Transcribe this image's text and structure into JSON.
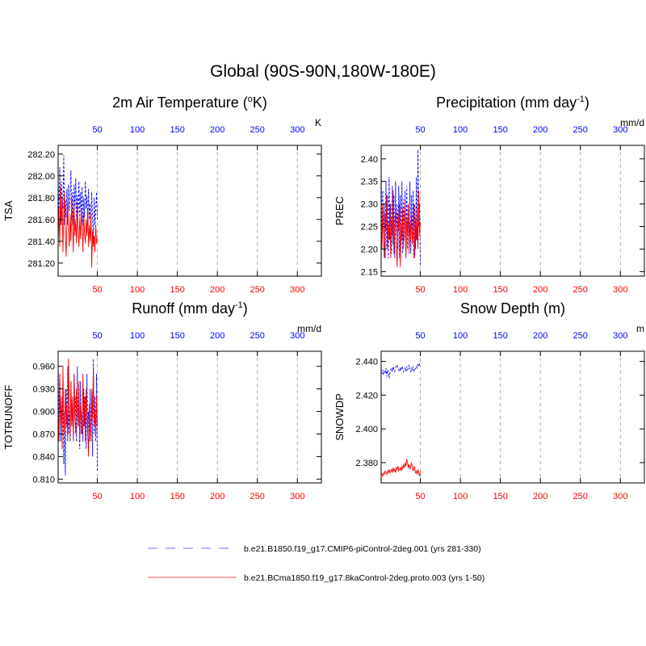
{
  "page_title": "Global (90S-90N,180W-180E)",
  "colors": {
    "series_a": "#0000ff",
    "series_b": "#ff0000",
    "frame": "#000000",
    "grid": "#999999"
  },
  "legend": [
    {
      "label": "b.e21.B1850.f19_g17.CMIP6-piControl-2deg.001 (yrs 281-330)",
      "color": "#8c8cff",
      "dash": "dashed"
    },
    {
      "label": "b.e21.BCma1850.f19_g17.8kaControl-2deg.proto.003 (yrs 1-50)",
      "color": "#ff7070",
      "dash": "solid"
    }
  ],
  "chart_data": [
    {
      "type": "line",
      "title": "2m Air Temperature (",
      "title_sup": "o",
      "title_tail": "K)",
      "ylabel": "TSA",
      "units": "K",
      "xlim": [
        1,
        330
      ],
      "ylim": [
        281.08,
        282.28
      ],
      "yticks": [
        281.2,
        281.4,
        281.6,
        281.8,
        282.0,
        282.2
      ],
      "ytick_labels": [
        "281.20",
        "281.40",
        "281.60",
        "281.80",
        "282.00",
        "282.20"
      ],
      "xticks": [
        50,
        100,
        150,
        200,
        250,
        300
      ],
      "xtick_labels": [
        "50",
        "100",
        "150",
        "200",
        "250",
        "300"
      ],
      "top_xtick_labels": [
        "50",
        "100",
        "150",
        "200",
        "250",
        "300"
      ],
      "series": [
        {
          "name": "b.e21.B1850.f19_g17.CMIP6-piControl-2deg.001 (yrs 281-330)",
          "x_start": 1,
          "values": [
            281.98,
            281.62,
            282.08,
            281.55,
            281.95,
            281.82,
            281.7,
            282.19,
            281.55,
            281.78,
            281.62,
            281.88,
            281.55,
            281.92,
            281.68,
            281.78,
            282.05,
            281.6,
            281.85,
            281.55,
            281.92,
            281.7,
            281.98,
            281.6,
            281.82,
            281.65,
            281.95,
            281.62,
            281.85,
            281.58,
            281.9,
            281.55,
            281.8,
            281.62,
            281.95,
            281.7,
            281.82,
            281.55,
            281.88,
            281.6,
            281.75,
            281.5,
            281.85,
            281.62,
            281.4,
            281.8,
            281.55,
            281.7,
            281.85,
            281.6
          ]
        },
        {
          "name": "b.e21.BCma1850.f19_g17.8kaControl-2deg.proto.003 (yrs 1-50)",
          "x_start": 1,
          "values": [
            281.4,
            281.7,
            281.35,
            281.9,
            281.55,
            281.8,
            281.3,
            281.65,
            281.85,
            281.45,
            281.26,
            281.6,
            281.75,
            281.5,
            281.35,
            281.65,
            281.4,
            281.8,
            281.55,
            281.3,
            281.7,
            281.45,
            281.6,
            281.38,
            281.75,
            281.5,
            281.35,
            281.62,
            281.42,
            281.7,
            281.55,
            281.3,
            281.65,
            281.48,
            281.38,
            281.6,
            281.45,
            281.7,
            281.35,
            281.55,
            281.4,
            281.65,
            281.16,
            281.5,
            281.35,
            281.45,
            281.3,
            281.55,
            281.38,
            281.42
          ]
        }
      ]
    },
    {
      "type": "line",
      "title": "Precipitation (mm day",
      "title_sup": "-1",
      "title_tail": ")",
      "ylabel": "PREC",
      "units": "mm/d",
      "xlim": [
        1,
        330
      ],
      "ylim": [
        2.14,
        2.43
      ],
      "yticks": [
        2.15,
        2.2,
        2.25,
        2.3,
        2.35,
        2.4
      ],
      "ytick_labels": [
        "2.15",
        "2.20",
        "2.25",
        "2.30",
        "2.35",
        "2.40"
      ],
      "xticks": [
        50,
        100,
        150,
        200,
        250,
        300
      ],
      "xtick_labels": [
        "50",
        "100",
        "150",
        "200",
        "250",
        "300"
      ],
      "top_xtick_labels": [
        "50",
        "100",
        "150",
        "200",
        "250",
        "300"
      ],
      "series": [
        {
          "name": "b.e21.B1850.f19_g17.CMIP6-piControl-2deg.001 (yrs 281-330)",
          "x_start": 1,
          "values": [
            2.4,
            2.2,
            2.33,
            2.22,
            2.3,
            2.18,
            2.35,
            2.2,
            2.32,
            2.18,
            2.36,
            2.22,
            2.3,
            2.19,
            2.34,
            2.21,
            2.32,
            2.18,
            2.35,
            2.23,
            2.3,
            2.2,
            2.34,
            2.18,
            2.32,
            2.21,
            2.35,
            2.19,
            2.31,
            2.22,
            2.33,
            2.18,
            2.34,
            2.2,
            2.3,
            2.22,
            2.35,
            2.19,
            2.32,
            2.21,
            2.33,
            2.18,
            2.3,
            2.2,
            2.36,
            2.22,
            2.42,
            2.25,
            2.3,
            2.16
          ]
        },
        {
          "name": "b.e21.BCma1850.f19_g17.8kaControl-2deg.proto.003 (yrs 1-50)",
          "x_start": 1,
          "values": [
            2.25,
            2.2,
            2.3,
            2.22,
            2.18,
            2.28,
            2.24,
            2.32,
            2.2,
            2.26,
            2.22,
            2.3,
            2.18,
            2.27,
            2.23,
            2.33,
            2.19,
            2.25,
            2.29,
            2.21,
            2.16,
            2.28,
            2.24,
            2.3,
            2.16,
            2.26,
            2.22,
            2.29,
            2.2,
            2.25,
            2.31,
            2.18,
            2.27,
            2.23,
            2.3,
            2.19,
            2.26,
            2.22,
            2.28,
            2.21,
            2.24,
            2.3,
            2.18,
            2.27,
            2.22,
            2.29,
            2.2,
            2.33,
            2.23,
            2.26
          ]
        }
      ]
    },
    {
      "type": "line",
      "title": "Runoff (mm day",
      "title_sup": "-1",
      "title_tail": ")",
      "ylabel": "TOTRUNOFF",
      "units": "mm/d",
      "xlim": [
        1,
        330
      ],
      "ylim": [
        0.805,
        0.98
      ],
      "yticks": [
        0.81,
        0.84,
        0.87,
        0.9,
        0.93,
        0.96
      ],
      "ytick_labels": [
        "0.810",
        "0.840",
        "0.870",
        "0.900",
        "0.930",
        "0.960"
      ],
      "xticks": [
        50,
        100,
        150,
        200,
        250,
        300
      ],
      "xtick_labels": [
        "50",
        "100",
        "150",
        "200",
        "250",
        "300"
      ],
      "top_xtick_labels": [
        "50",
        "100",
        "150",
        "200",
        "250",
        "300"
      ],
      "series": [
        {
          "name": "b.e21.B1850.f19_g17.CMIP6-piControl-2deg.001 (yrs 281-330)",
          "x_start": 1,
          "values": [
            0.97,
            0.88,
            0.95,
            0.86,
            0.92,
            0.87,
            0.94,
            0.83,
            0.9,
            0.815,
            0.93,
            0.88,
            0.96,
            0.87,
            0.91,
            0.86,
            0.94,
            0.88,
            0.9,
            0.87,
            0.95,
            0.89,
            0.92,
            0.86,
            0.96,
            0.88,
            0.91,
            0.85,
            0.94,
            0.87,
            0.9,
            0.86,
            0.93,
            0.88,
            0.92,
            0.85,
            0.95,
            0.87,
            0.9,
            0.86,
            0.93,
            0.88,
            0.91,
            0.84,
            0.97,
            0.87,
            0.92,
            0.86,
            0.95,
            0.82
          ]
        },
        {
          "name": "b.e21.BCma1850.f19_g17.8kaControl-2deg.proto.003 (yrs 1-50)",
          "x_start": 1,
          "values": [
            0.9,
            0.86,
            0.95,
            0.88,
            0.92,
            0.85,
            0.96,
            0.89,
            0.87,
            0.93,
            0.88,
            0.91,
            0.86,
            0.97,
            0.9,
            0.87,
            0.94,
            0.88,
            0.92,
            0.86,
            0.95,
            0.89,
            0.87,
            0.93,
            0.9,
            0.88,
            0.94,
            0.86,
            0.91,
            0.89,
            0.87,
            0.95,
            0.88,
            0.92,
            0.86,
            0.93,
            0.9,
            0.87,
            0.84,
            0.91,
            0.88,
            0.86,
            0.93,
            0.89,
            0.96,
            0.88,
            0.9,
            0.87,
            0.92,
            0.88
          ]
        }
      ]
    },
    {
      "type": "line",
      "title": "Snow Depth (m)",
      "title_sup": "",
      "title_tail": "",
      "ylabel": "SNOWDP",
      "units": "m",
      "xlim": [
        1,
        330
      ],
      "ylim": [
        2.368,
        2.446
      ],
      "yticks": [
        2.38,
        2.4,
        2.42,
        2.44
      ],
      "ytick_labels": [
        "2.380",
        "2.400",
        "2.420",
        "2.440"
      ],
      "xticks": [
        50,
        100,
        150,
        200,
        250,
        300
      ],
      "xtick_labels": [
        "50",
        "100",
        "150",
        "200",
        "250",
        "300"
      ],
      "top_xtick_labels": [
        "50",
        "100",
        "150",
        "200",
        "250",
        "300"
      ],
      "series": [
        {
          "name": "b.e21.B1850.f19_g17.CMIP6-piControl-2deg.001 (yrs 281-330)",
          "x_start": 1,
          "values": [
            2.434,
            2.433,
            2.435,
            2.432,
            2.434,
            2.433,
            2.436,
            2.431,
            2.435,
            2.434,
            2.43,
            2.433,
            2.435,
            2.436,
            2.434,
            2.437,
            2.435,
            2.434,
            2.436,
            2.437,
            2.438,
            2.436,
            2.435,
            2.434,
            2.436,
            2.435,
            2.437,
            2.436,
            2.434,
            2.435,
            2.436,
            2.434,
            2.437,
            2.435,
            2.436,
            2.438,
            2.435,
            2.434,
            2.436,
            2.435,
            2.437,
            2.434,
            2.435,
            2.436,
            2.437,
            2.436,
            2.438,
            2.437,
            2.439,
            2.44
          ]
        },
        {
          "name": "b.e21.BCma1850.f19_g17.8kaControl-2deg.proto.003 (yrs 1-50)",
          "x_start": 1,
          "values": [
            2.374,
            2.373,
            2.372,
            2.374,
            2.373,
            2.375,
            2.374,
            2.373,
            2.375,
            2.374,
            2.376,
            2.374,
            2.375,
            2.376,
            2.374,
            2.377,
            2.375,
            2.376,
            2.374,
            2.377,
            2.376,
            2.378,
            2.375,
            2.376,
            2.377,
            2.375,
            2.378,
            2.376,
            2.379,
            2.377,
            2.38,
            2.378,
            2.382,
            2.38,
            2.377,
            2.379,
            2.376,
            2.378,
            2.38,
            2.377,
            2.375,
            2.378,
            2.376,
            2.374,
            2.375,
            2.373,
            2.376,
            2.374,
            2.372,
            2.375
          ]
        }
      ]
    }
  ]
}
